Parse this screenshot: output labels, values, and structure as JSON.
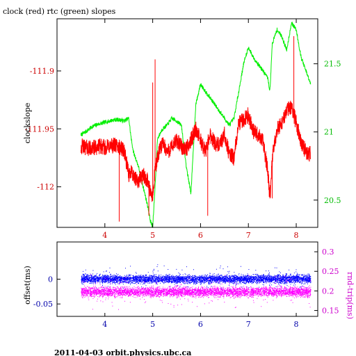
{
  "title": "clock (red) rtc (green) slopes",
  "footer": "2011-04-03  orbit.physics.ubc.ca",
  "colors": {
    "clock": "#ff0000",
    "rtc": "#00ee00",
    "offset": "#0000ff",
    "roundtrip": "#ff00ff",
    "left_axis_top": "#cc0000",
    "right_axis_top": "#00bb00",
    "left_axis_bottom": "#0000aa",
    "right_axis_bottom": "#cc00cc"
  },
  "chart_data": [
    {
      "type": "line",
      "title": "clock (red) rtc (green) slopes",
      "ylabel": "clockslope",
      "xlim": [
        3.0,
        8.45
      ],
      "ylim": [
        -112.035,
        -111.855
      ],
      "xticks": [
        "4",
        "5",
        "6",
        "7",
        "8"
      ],
      "yticks": [
        "-111.9",
        "-111.95",
        "-112"
      ],
      "y2lim": [
        20.3,
        21.83
      ],
      "y2ticks": [
        "21.5",
        "21",
        "20.5"
      ],
      "grid": false,
      "series": [
        {
          "name": "clock",
          "axis": "left",
          "x": [
            3.5,
            3.6,
            3.7,
            3.8,
            3.9,
            4.0,
            4.1,
            4.2,
            4.3,
            4.4,
            4.5,
            4.55,
            4.6,
            4.7,
            4.8,
            4.9,
            4.95,
            5.0,
            5.05,
            5.1,
            5.2,
            5.3,
            5.4,
            5.5,
            5.6,
            5.7,
            5.8,
            5.9,
            6.0,
            6.1,
            6.2,
            6.3,
            6.4,
            6.5,
            6.6,
            6.7,
            6.8,
            6.9,
            7.0,
            7.1,
            7.2,
            7.3,
            7.4,
            7.45,
            7.5,
            7.6,
            7.7,
            7.8,
            7.9,
            8.0,
            8.1,
            8.2,
            8.3
          ],
          "y": [
            -111.965,
            -111.966,
            -111.967,
            -111.966,
            -111.965,
            -111.966,
            -111.965,
            -111.964,
            -111.966,
            -111.968,
            -111.99,
            -111.985,
            -111.993,
            -111.995,
            -111.99,
            -111.995,
            -112.005,
            -112.01,
            -111.985,
            -111.975,
            -111.962,
            -111.97,
            -111.966,
            -111.96,
            -111.965,
            -111.968,
            -111.96,
            -111.95,
            -111.96,
            -111.97,
            -111.955,
            -111.962,
            -111.965,
            -111.955,
            -111.972,
            -111.975,
            -111.945,
            -111.942,
            -111.938,
            -111.952,
            -111.955,
            -111.96,
            -111.985,
            -112.01,
            -111.975,
            -111.95,
            -111.945,
            -111.935,
            -111.93,
            -111.945,
            -111.96,
            -111.97,
            -111.972
          ],
          "spikes_x": [
            4.3,
            4.92,
            5.0,
            5.05,
            6.15,
            7.5,
            7.95
          ],
          "spikes_y": [
            -112.03,
            -112.025,
            -111.91,
            -111.89,
            -112.025,
            -112.01,
            -111.87
          ]
        },
        {
          "name": "rtc",
          "axis": "right",
          "x": [
            3.5,
            3.6,
            3.7,
            3.8,
            3.9,
            4.0,
            4.1,
            4.2,
            4.3,
            4.4,
            4.5,
            4.55,
            4.6,
            4.7,
            4.8,
            4.9,
            4.95,
            5.0,
            5.05,
            5.1,
            5.2,
            5.3,
            5.4,
            5.5,
            5.6,
            5.7,
            5.8,
            5.9,
            6.0,
            6.1,
            6.2,
            6.3,
            6.4,
            6.5,
            6.6,
            6.7,
            6.8,
            6.9,
            7.0,
            7.1,
            7.2,
            7.3,
            7.4,
            7.45,
            7.5,
            7.6,
            7.7,
            7.8,
            7.9,
            8.0,
            8.1,
            8.2,
            8.3
          ],
          "y": [
            20.98,
            21.0,
            21.03,
            21.05,
            21.06,
            21.07,
            21.08,
            21.09,
            21.09,
            21.08,
            21.1,
            20.95,
            20.85,
            20.75,
            20.6,
            20.45,
            20.35,
            20.3,
            20.6,
            20.95,
            21.02,
            21.05,
            21.1,
            21.08,
            21.05,
            20.75,
            20.55,
            21.2,
            21.35,
            21.3,
            21.25,
            21.2,
            21.15,
            21.1,
            21.05,
            21.1,
            21.3,
            21.5,
            21.62,
            21.55,
            21.5,
            21.45,
            21.4,
            21.3,
            21.65,
            21.75,
            21.7,
            21.6,
            21.8,
            21.75,
            21.55,
            21.45,
            21.35
          ]
        }
      ]
    },
    {
      "type": "scatter",
      "xlabel": "",
      "ylabel": "offset(ms)",
      "y2label": "rnd-trip(ms)",
      "xlim": [
        3.0,
        8.45
      ],
      "ylim": [
        -0.075,
        0.075
      ],
      "xticks": [
        "4",
        "5",
        "6",
        "7",
        "8"
      ],
      "yticks": [
        "0",
        "-0.05"
      ],
      "y2lim": [
        0.135,
        0.325
      ],
      "y2ticks": [
        "0.3",
        "0.25",
        "0.2",
        "0.15"
      ],
      "grid": false,
      "series": [
        {
          "name": "offset",
          "axis": "left",
          "x": [
            3.5,
            8.3
          ],
          "y": [
            0.0,
            0.0
          ],
          "band_lower": -0.012,
          "band_upper": 0.012
        },
        {
          "name": "rnd-trip",
          "axis": "right",
          "x": [
            3.5,
            8.3
          ],
          "y": [
            0.2,
            0.2
          ],
          "band_lower": 0.18,
          "band_upper": 0.215
        }
      ]
    }
  ]
}
